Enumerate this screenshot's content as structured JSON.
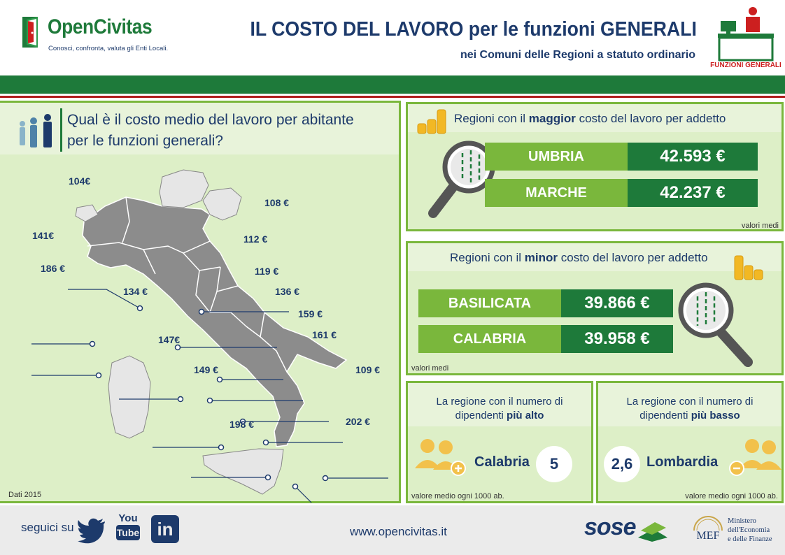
{
  "header": {
    "brand": "OpenCivitas",
    "tagline": "Conosci, confronta, valuta gli Enti Locali.",
    "title": "IL COSTO DEL LAVORO per le funzioni GENERALI",
    "subtitle": "nei Comuni delle Regioni a statuto ordinario",
    "badge_label": "FUNZIONI GENERALI"
  },
  "map": {
    "question_line1": "Qual è il costo medio del lavoro per abitante",
    "question_line2": "per le funzioni generali?",
    "note": "Dati 2015",
    "labels": [
      "104€",
      "108 €",
      "141€",
      "112 €",
      "186 €",
      "119 €",
      "134 €",
      "136 €",
      "159 €",
      "161 €",
      "147€",
      "109 €",
      "149 €",
      "202 €",
      "198 €"
    ]
  },
  "top_panel": {
    "title_pre": "Regioni con il ",
    "title_bold": "maggior",
    "title_post": " costo del lavoro per addetto",
    "rows": [
      {
        "name": "UMBRIA",
        "value": "42.593 €"
      },
      {
        "name": "MARCHE",
        "value": "42.237 €"
      }
    ],
    "note": "valori medi"
  },
  "low_panel": {
    "title_pre": "Regioni con il ",
    "title_bold": "minor",
    "title_post": " costo del lavoro per addetto",
    "rows": [
      {
        "name": "BASILICATA",
        "value": "39.866 €"
      },
      {
        "name": "CALABRIA",
        "value": "39.958 €"
      }
    ],
    "note": "valori medi"
  },
  "high_staff": {
    "title_line1": "La regione con il numero di",
    "title_pre": "dipendenti ",
    "title_bold": "più alto",
    "region": "Calabria",
    "value": "5",
    "note": "valore medio ogni 1000 ab."
  },
  "low_staff": {
    "title_line1": "La regione con il numero di",
    "title_pre": "dipendenti ",
    "title_bold": "più basso",
    "region": "Lombardia",
    "value": "2,6",
    "note": "valore medio ogni 1000 ab."
  },
  "footer": {
    "follow": "seguici su",
    "youtube_top": "You",
    "youtube_bottom": "Tube",
    "linkedin": "in",
    "website": "www.opencivitas.it",
    "sose": "sose",
    "mef_short": "MEF",
    "mef_line1": "Ministero",
    "mef_line2": "dell'Economia",
    "mef_line3": "e delle Finanze"
  },
  "colors": {
    "dark_green": "#1e7a3a",
    "light_green": "#7ab73c",
    "panel_bg": "#ddefc7",
    "navy": "#1d3a6b",
    "red": "#cc1f1f",
    "gold": "#f2b824"
  }
}
